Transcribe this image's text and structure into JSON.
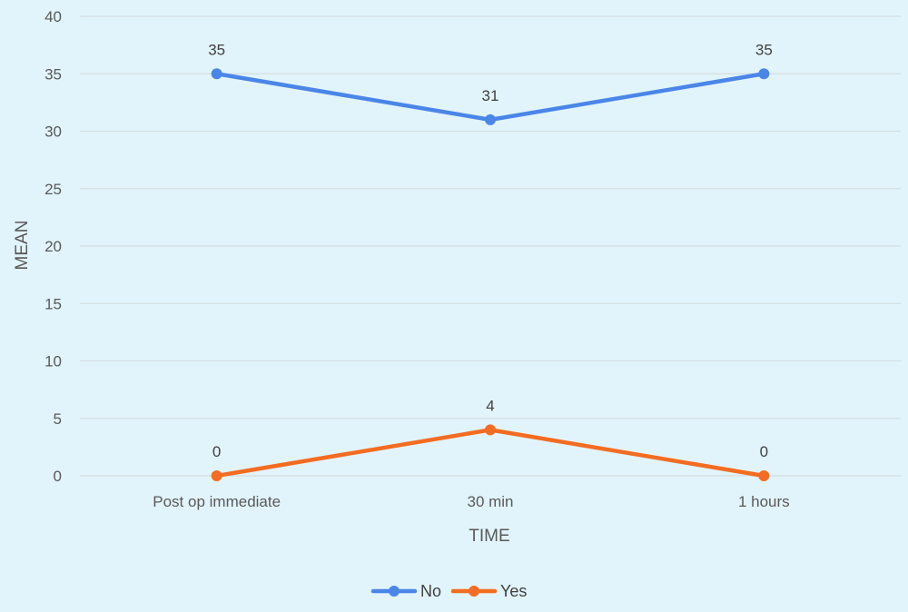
{
  "chart_data": {
    "type": "line",
    "title": "",
    "xlabel": "TIME",
    "ylabel": "MEAN",
    "categories": [
      "Post op immediate",
      "30 min",
      "1 hours"
    ],
    "ylim": [
      0,
      40
    ],
    "yticks": [
      0,
      5,
      10,
      15,
      20,
      25,
      30,
      35,
      40
    ],
    "grid": true,
    "legend_position": "bottom",
    "data_labels": true,
    "series": [
      {
        "name": "No",
        "values": [
          35,
          31,
          35
        ],
        "color": "#4a86e8"
      },
      {
        "name": "Yes",
        "values": [
          0,
          4,
          0
        ],
        "color": "#f36c21"
      }
    ]
  }
}
